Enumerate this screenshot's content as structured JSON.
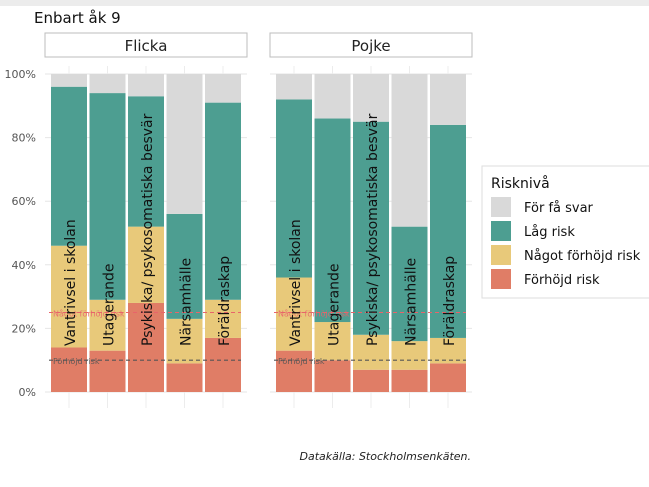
{
  "chart_data": {
    "type": "bar",
    "stacked": true,
    "title": "Enbart åk 9",
    "caption": "Datakälla: Stockholmsenkäten.",
    "categories": [
      "Vantrivsel i skolan",
      "Utagerande",
      "Psykiska/ psykosomatiska besvär",
      "Närsamhälle",
      "Föräldraskap"
    ],
    "yticks": [
      "0%",
      "20%",
      "40%",
      "60%",
      "80%",
      "100%"
    ],
    "ylim": [
      0,
      1
    ],
    "legend": {
      "title": "Risknivå",
      "position": "right",
      "items": [
        {
          "label": "För få svar",
          "color": "#d9d9d9"
        },
        {
          "label": "Låg risk",
          "color": "#4d9e91"
        },
        {
          "label": "Något förhöjd risk",
          "color": "#e8c97a"
        },
        {
          "label": "Förhöjd risk",
          "color": "#e07d66"
        }
      ]
    },
    "reference_lines": [
      {
        "label": "Något förhöjd risk",
        "value": 0.25,
        "color": "#e8646a"
      },
      {
        "label": "Förhöjd risk",
        "value": 0.1,
        "color": "#555555"
      }
    ],
    "panels": [
      {
        "name": "Flicka",
        "series": [
          {
            "level": "Förhöjd risk",
            "values": [
              0.14,
              0.13,
              0.28,
              0.09,
              0.17
            ]
          },
          {
            "level": "Något förhöjd risk",
            "values": [
              0.32,
              0.16,
              0.24,
              0.14,
              0.12
            ]
          },
          {
            "level": "Låg risk",
            "values": [
              0.5,
              0.65,
              0.41,
              0.33,
              0.62
            ]
          },
          {
            "level": "För få svar",
            "values": [
              0.04,
              0.06,
              0.07,
              0.44,
              0.09
            ]
          }
        ]
      },
      {
        "name": "Pojke",
        "series": [
          {
            "level": "Förhöjd risk",
            "values": [
              0.13,
              0.1,
              0.07,
              0.07,
              0.09
            ]
          },
          {
            "level": "Något förhöjd risk",
            "values": [
              0.23,
              0.12,
              0.11,
              0.09,
              0.08
            ]
          },
          {
            "level": "Låg risk",
            "values": [
              0.56,
              0.64,
              0.67,
              0.36,
              0.67
            ]
          },
          {
            "level": "För få svar",
            "values": [
              0.08,
              0.14,
              0.15,
              0.48,
              0.16
            ]
          }
        ]
      }
    ]
  }
}
